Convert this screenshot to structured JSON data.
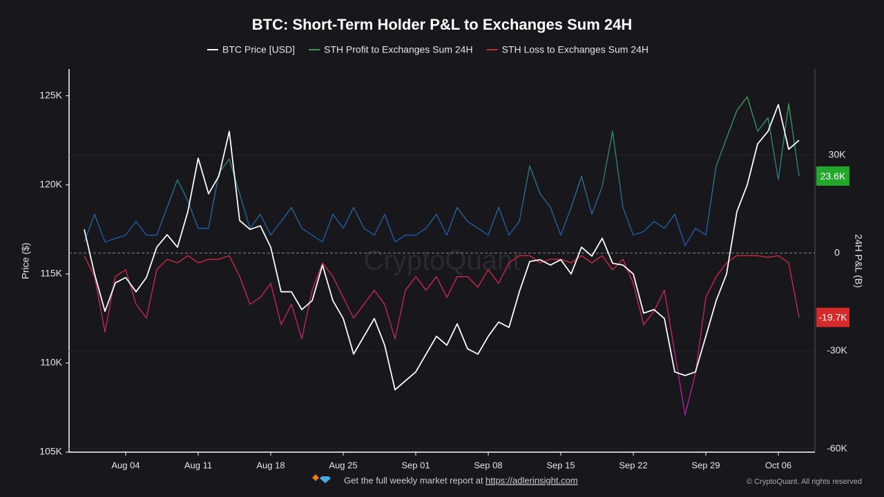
{
  "chart_data": {
    "type": "line",
    "title": "BTC: Short-Term Holder P&L to Exchanges Sum 24H",
    "y_label": "Price ($)",
    "y2_label": "24H P&L (B)",
    "watermark": "CryptoQuant",
    "footer": "Get the full weekly market report at",
    "footer_link": "https://adlerinsight.com",
    "copyright": "© CryptoQuant. All rights reserved",
    "categories": [
      null,
      null,
      null,
      null,
      "Aug 04",
      null,
      null,
      null,
      null,
      null,
      null,
      "Aug 11",
      null,
      null,
      null,
      null,
      null,
      null,
      "Aug 18",
      null,
      null,
      null,
      null,
      null,
      null,
      "Aug 25",
      null,
      null,
      null,
      null,
      null,
      null,
      "Sep 01",
      null,
      null,
      null,
      null,
      null,
      null,
      "Sep 08",
      null,
      null,
      null,
      null,
      null,
      null,
      "Sep 15",
      null,
      null,
      null,
      null,
      null,
      null,
      "Sep 22",
      null,
      null,
      null,
      null,
      null,
      null,
      "Sep 29",
      null,
      null,
      null,
      null,
      null,
      null,
      "Oct 06",
      null,
      null
    ],
    "ylim": [
      105000,
      126500
    ],
    "yticks": [
      {
        "value": 105000,
        "label": "105K"
      },
      {
        "value": 110000,
        "label": "110K"
      },
      {
        "value": 115000,
        "label": "115K"
      },
      {
        "value": 120000,
        "label": "120K"
      },
      {
        "value": 125000,
        "label": "125K"
      }
    ],
    "y2lim": [
      -61000,
      56400
    ],
    "y2ticks": [
      {
        "value": -60000,
        "label": "-60K"
      },
      {
        "value": -30000,
        "label": "-30K"
      },
      0,
      {
        "value": 30000,
        "label": "30K"
      }
    ],
    "zero_line": true,
    "series": [
      {
        "name": "BTC Price [USD]",
        "color": "#ffffff",
        "values": [
          117500,
          115000,
          112900,
          114500,
          114800,
          114000,
          114800,
          116500,
          117200,
          116500,
          118500,
          121500,
          119500,
          120500,
          123000,
          118000,
          117500,
          117700,
          116500,
          114000,
          114000,
          113000,
          113500,
          115500,
          113500,
          112500,
          110500,
          111500,
          112500,
          111000,
          108500,
          109000,
          109500,
          110500,
          111500,
          111000,
          112200,
          110800,
          110500,
          111500,
          112300,
          112000,
          114000,
          115700,
          115800,
          115500,
          115800,
          115000,
          116500,
          116000,
          117000,
          115600,
          115500,
          115000,
          112800,
          113000,
          112500,
          109500,
          109300,
          109500,
          111500,
          113500,
          115000,
          118500,
          120000,
          122300,
          123000,
          124500,
          122000,
          122500
        ]
      },
      {
        "name": "STH Profit to Exchanges Sum 24H",
        "color": "#3aa04a",
        "gradient_to": "#1d4ea8",
        "axis": "y2",
        "badge_color": "#22a82a",
        "values": [
          3400,
          11900,
          3400,
          4500,
          5500,
          9700,
          5500,
          5500,
          14000,
          22500,
          16000,
          7600,
          7600,
          24600,
          28800,
          18200,
          7600,
          11900,
          5500,
          9700,
          14000,
          7600,
          5500,
          3400,
          11900,
          7600,
          14000,
          7600,
          5500,
          11900,
          3400,
          5500,
          5500,
          7600,
          11900,
          5500,
          14000,
          9700,
          7600,
          5500,
          14000,
          5500,
          9700,
          26700,
          18200,
          14000,
          5500,
          14000,
          23500,
          11900,
          20400,
          37300,
          14000,
          5500,
          6600,
          9700,
          7600,
          11900,
          2300,
          7600,
          5500,
          26700,
          35200,
          43700,
          47900,
          37300,
          41500,
          22500,
          45800,
          23600
        ],
        "value_labels": [
          null,
          null,
          null,
          null,
          null,
          null,
          null,
          null,
          null,
          null,
          null,
          null,
          null,
          null,
          null,
          null,
          null,
          null,
          null,
          null,
          null,
          null,
          null,
          null,
          null,
          null,
          null,
          null,
          null,
          null,
          null,
          null,
          null,
          null,
          null,
          null,
          null,
          null,
          null,
          null,
          null,
          null,
          null,
          null,
          null,
          null,
          null,
          null,
          null,
          null,
          null,
          null,
          null,
          null,
          null,
          null,
          null,
          null,
          null,
          null,
          null,
          null,
          null,
          null,
          null,
          null,
          null,
          null,
          null,
          "23.6K"
        ]
      },
      {
        "name": "STH Loss to Exchanges Sum 24H",
        "color": "#c8283c",
        "gradient_to": "#9a1fa0",
        "axis": "y2",
        "badge_color": "#d42a2a",
        "values": [
          -800,
          -7200,
          -24200,
          -7200,
          -5100,
          -15700,
          -19900,
          -5100,
          -1900,
          -3000,
          -800,
          -3000,
          -1900,
          -1900,
          -800,
          -7200,
          -15700,
          -13600,
          -9300,
          -22000,
          -15700,
          -26300,
          -11400,
          -3000,
          -7200,
          -13600,
          -19900,
          -15700,
          -11400,
          -15700,
          -26300,
          -11400,
          -7200,
          -11400,
          -7200,
          -13600,
          -7200,
          -7200,
          -10400,
          -5100,
          -9300,
          -3000,
          -800,
          -800,
          -3000,
          -1900,
          -1900,
          -3000,
          -800,
          -3000,
          -800,
          -5100,
          -1900,
          -9300,
          -22000,
          -17800,
          -11400,
          -30500,
          -49600,
          -36900,
          -13600,
          -7200,
          -3000,
          -800,
          -800,
          -800,
          -1300,
          -800,
          -3000,
          -19700
        ],
        "value_labels": [
          null,
          null,
          null,
          null,
          null,
          null,
          null,
          null,
          null,
          null,
          null,
          null,
          null,
          null,
          null,
          null,
          null,
          null,
          null,
          null,
          null,
          null,
          null,
          null,
          null,
          null,
          null,
          null,
          null,
          null,
          null,
          null,
          null,
          null,
          null,
          null,
          null,
          null,
          null,
          null,
          null,
          null,
          null,
          null,
          null,
          null,
          null,
          null,
          null,
          null,
          null,
          null,
          null,
          null,
          null,
          null,
          null,
          null,
          null,
          null,
          null,
          null,
          null,
          null,
          null,
          null,
          null,
          null,
          null,
          "-19.7K"
        ]
      }
    ]
  }
}
